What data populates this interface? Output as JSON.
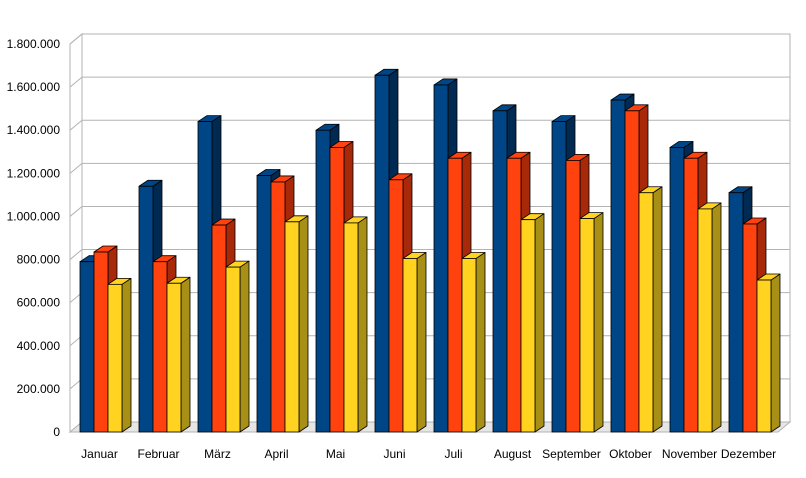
{
  "chart_data": {
    "type": "bar",
    "categories": [
      "Januar",
      "Februar",
      "März",
      "April",
      "Mai",
      "Juni",
      "Juli",
      "August",
      "September",
      "Oktober",
      "November",
      "Dezember"
    ],
    "series": [
      {
        "color": "#004586",
        "values": [
          790000,
          1140000,
          1440000,
          1190000,
          1400000,
          1655000,
          1610000,
          1490000,
          1440000,
          1540000,
          1320000,
          1110000
        ]
      },
      {
        "color": "#ff420e",
        "values": [
          835000,
          790000,
          960000,
          1160000,
          1320000,
          1170000,
          1270000,
          1270000,
          1260000,
          1490000,
          1270000,
          965000
        ]
      },
      {
        "color": "#ffd320",
        "values": [
          685000,
          690000,
          765000,
          975000,
          970000,
          805000,
          805000,
          985000,
          990000,
          1110000,
          1035000,
          705000
        ]
      }
    ],
    "ylim": [
      0,
      1800000
    ],
    "yticks": [
      "0",
      "200.000",
      "400.000",
      "600.000",
      "800.000",
      "1.000.000",
      "1.200.000",
      "1.400.000",
      "1.600.000",
      "1.800.000"
    ],
    "grid": true,
    "legend": "none",
    "side_colors": [
      "#002a52",
      "#a8290a",
      "#a89016"
    ]
  }
}
